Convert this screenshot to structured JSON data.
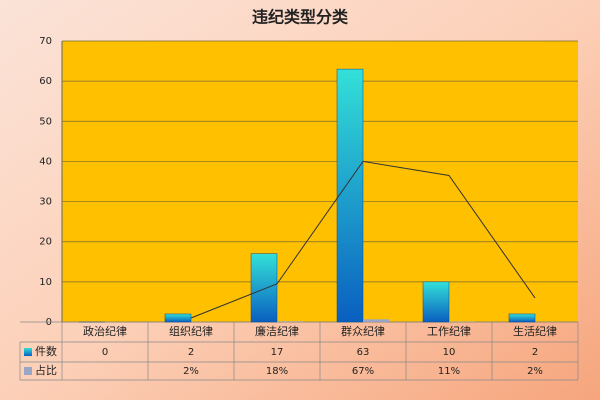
{
  "chart_data": {
    "type": "bar",
    "title": "违纪类型分类",
    "categories": [
      "政治纪律",
      "组织纪律",
      "廉洁纪律",
      "群众纪律",
      "工作纪律",
      "生活纪律"
    ],
    "series": [
      {
        "name": "件数",
        "color": "#1e90d8",
        "values": [
          0,
          2,
          17,
          63,
          10,
          2
        ]
      },
      {
        "name": "占比",
        "color": "#9aa6c8",
        "values": [
          null,
          0.02,
          0.18,
          0.67,
          0.11,
          0.02
        ],
        "value_labels": [
          null,
          "2%",
          "18%",
          "67%",
          "11%",
          "2%"
        ]
      }
    ],
    "trendline": {
      "color": "#333333",
      "values": [
        null,
        1,
        9.5,
        40,
        36.5,
        6
      ]
    },
    "ylim": [
      0,
      70
    ],
    "yticks": [
      0,
      10,
      20,
      30,
      40,
      50,
      60,
      70
    ],
    "grid": true
  }
}
